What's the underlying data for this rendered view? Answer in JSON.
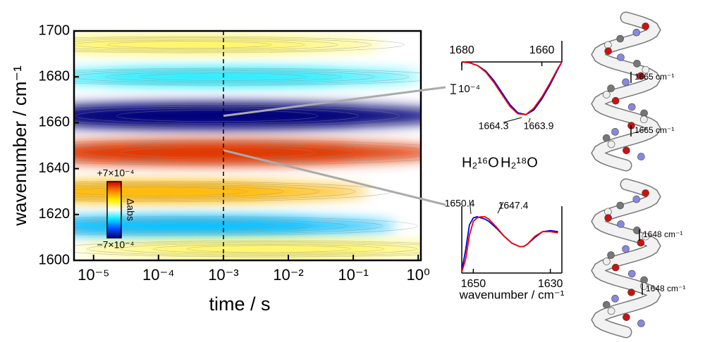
{
  "chart_data": [
    {
      "type": "contour",
      "xlabel": "time / s",
      "ylabel": "wavenumber / cm⁻¹",
      "log_x": true,
      "xlim": [
        5e-06,
        1.1
      ],
      "ylim": [
        1600,
        1700
      ],
      "xticks": [
        {
          "value": 1e-05,
          "label": "10⁻⁵"
        },
        {
          "value": 0.0001,
          "label": "10⁻⁴"
        },
        {
          "value": 0.001,
          "label": "10⁻³"
        },
        {
          "value": 0.01,
          "label": "10⁻²"
        },
        {
          "value": 0.1,
          "label": "10⁻¹"
        },
        {
          "value": 1,
          "label": "10⁰"
        }
      ],
      "yticks": [
        1600,
        1620,
        1640,
        1660,
        1680,
        1700
      ],
      "marker_time": 0.001,
      "clim": [
        -0.0007,
        0.0007
      ],
      "cticks": [
        {
          "value": -0.0007,
          "label": "−7×10⁻⁴"
        },
        {
          "value": 0.0007,
          "label": "+7×10⁻⁴"
        }
      ],
      "clabel": "Δabs",
      "colormap": [
        "#00007a",
        "#0050ff",
        "#00e8ff",
        "#ffffff",
        "#fff000",
        "#ff8000",
        "#c80000"
      ],
      "features": [
        {
          "time": 0.0003,
          "wavenumber": 1694,
          "value": 0.00015
        },
        {
          "time": 0.001,
          "wavenumber": 1680,
          "value": -0.0002
        },
        {
          "time": 0.0001,
          "wavenumber": 1630,
          "value": 0.00035
        },
        {
          "time": 0.0003,
          "wavenumber": 1615,
          "value": -0.0003
        },
        {
          "time": 0.005,
          "wavenumber": 1605,
          "value": 0.00015
        },
        {
          "time": 0.0008,
          "wavenumber": 1663,
          "value": -0.0007
        },
        {
          "time": 0.0008,
          "wavenumber": 1647,
          "value": 0.0006
        }
      ]
    },
    {
      "type": "line",
      "xlim": [
        1680,
        1655
      ],
      "ylim": [
        -0.0007,
        0
      ],
      "xticks": [
        1680,
        1660
      ],
      "x": [
        1680,
        1678,
        1676,
        1674,
        1672,
        1670,
        1668,
        1666,
        1664,
        1662,
        1660,
        1658,
        1656,
        1655
      ],
      "series": [
        {
          "name": "H₂¹⁶O",
          "color": "#0000dd",
          "values": [
            0,
            -1e-05,
            -4e-05,
            -0.0001,
            -0.0002,
            -0.00033,
            -0.00046,
            -0.00055,
            -0.00057,
            -0.00052,
            -0.0004,
            -0.00025,
            -8e-05,
            0
          ]
        },
        {
          "name": "H₂¹⁸O",
          "color": "#ee0000",
          "values": [
            0,
            -1e-05,
            -4e-05,
            -0.00011,
            -0.00022,
            -0.00035,
            -0.00048,
            -0.00056,
            -0.00057,
            -0.0005,
            -0.00038,
            -0.00023,
            -7e-05,
            0
          ]
        }
      ],
      "scale_bar": {
        "value": 0.0001,
        "label": "10⁻⁴"
      },
      "peak_labels": [
        {
          "text": "1664.3",
          "series": 1
        },
        {
          "text": "1663.9",
          "series": 0
        }
      ]
    },
    {
      "type": "line",
      "xlabel": "wavenumber / cm⁻¹",
      "xlim": [
        1653,
        1627
      ],
      "ylim": [
        0,
        0.0006
      ],
      "xticks": [
        1650,
        1630
      ],
      "x": [
        1653,
        1652,
        1651,
        1650,
        1649,
        1648,
        1647,
        1646,
        1644,
        1642,
        1640,
        1638,
        1637,
        1636,
        1634,
        1632,
        1630,
        1628
      ],
      "series": [
        {
          "name": "H₂¹⁶O",
          "color": "#0000dd",
          "values": [
            2e-05,
            0.0002,
            0.00042,
            0.00048,
            0.00049,
            0.00048,
            0.00047,
            0.00045,
            0.00039,
            0.00032,
            0.00026,
            0.00023,
            0.00023,
            0.00025,
            0.00031,
            0.00036,
            0.00037,
            0.00036
          ]
        },
        {
          "name": "H₂¹⁸O",
          "color": "#ee0000",
          "values": [
            1e-05,
            0.00012,
            0.00033,
            0.00045,
            0.00048,
            0.00049,
            0.00049,
            0.00047,
            0.0004,
            0.00032,
            0.00026,
            0.00023,
            0.00023,
            0.00025,
            0.00032,
            0.00036,
            0.00036,
            0.00035
          ]
        }
      ],
      "peak_labels": [
        {
          "text": "1650.4",
          "series": 0
        },
        {
          "text": "1647.4",
          "series": 1
        }
      ]
    }
  ],
  "helix_labels": [
    "1665 cm⁻¹",
    "1665 cm⁻¹",
    "1648 cm⁻¹",
    "1648 cm⁻¹"
  ]
}
